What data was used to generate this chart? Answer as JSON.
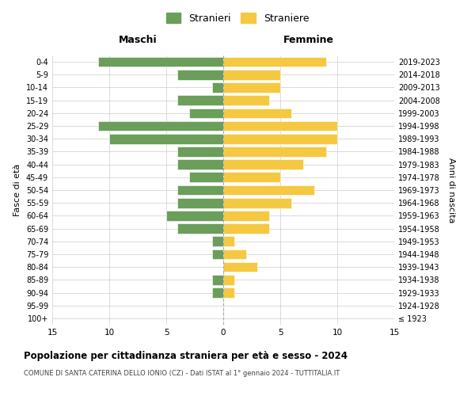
{
  "age_groups": [
    "100+",
    "95-99",
    "90-94",
    "85-89",
    "80-84",
    "75-79",
    "70-74",
    "65-69",
    "60-64",
    "55-59",
    "50-54",
    "45-49",
    "40-44",
    "35-39",
    "30-34",
    "25-29",
    "20-24",
    "15-19",
    "10-14",
    "5-9",
    "0-4"
  ],
  "birth_years": [
    "≤ 1923",
    "1924-1928",
    "1929-1933",
    "1934-1938",
    "1939-1943",
    "1944-1948",
    "1949-1953",
    "1954-1958",
    "1959-1963",
    "1964-1968",
    "1969-1973",
    "1974-1978",
    "1979-1983",
    "1984-1988",
    "1989-1993",
    "1994-1998",
    "1999-2003",
    "2004-2008",
    "2009-2013",
    "2014-2018",
    "2019-2023"
  ],
  "maschi": [
    0,
    0,
    1,
    1,
    0,
    1,
    1,
    4,
    5,
    4,
    4,
    3,
    4,
    4,
    10,
    11,
    3,
    4,
    1,
    4,
    11
  ],
  "femmine": [
    0,
    0,
    1,
    1,
    3,
    2,
    1,
    4,
    4,
    6,
    8,
    5,
    7,
    9,
    10,
    10,
    6,
    4,
    5,
    5,
    9
  ],
  "color_maschi": "#6a9e5a",
  "color_femmine": "#f5c842",
  "title": "Popolazione per cittadinanza straniera per età e sesso - 2024",
  "subtitle": "COMUNE DI SANTA CATERINA DELLO IONIO (CZ) - Dati ISTAT al 1° gennaio 2024 - TUTTITALIA.IT",
  "xlabel_left": "Maschi",
  "xlabel_right": "Femmine",
  "ylabel_left": "Fasce di età",
  "ylabel_right": "Anni di nascita",
  "legend_maschi": "Stranieri",
  "legend_femmine": "Straniere",
  "xlim": 15,
  "background_color": "#ffffff",
  "grid_color": "#cccccc"
}
